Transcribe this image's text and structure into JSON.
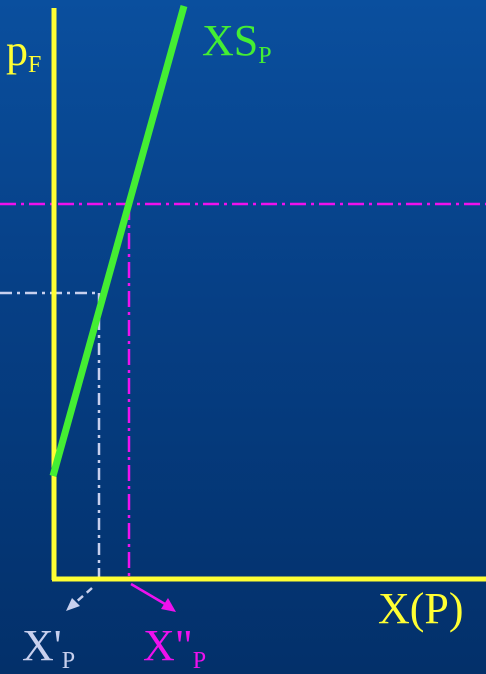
{
  "labels": {
    "y_axis_main": "p",
    "y_axis_sub": "F",
    "supply_main": "XS",
    "supply_sub": "P",
    "x_axis": "X(P)",
    "x_prime_main": "X'",
    "x_prime_sub": "P",
    "x_dprime_main": "X\"",
    "x_dprime_sub": "P"
  },
  "colors": {
    "axes": "#ffff33",
    "supply_curve": "#44ee33",
    "high_price_guide": "#ee11ee",
    "low_price_guide": "#c8d0ee",
    "x_prime_label": "#c8d0ee",
    "x_dprime_label": "#ee11ee",
    "x_axis_label": "#ffff33",
    "y_axis_label": "#ffff33",
    "supply_label": "#44ee33"
  }
}
